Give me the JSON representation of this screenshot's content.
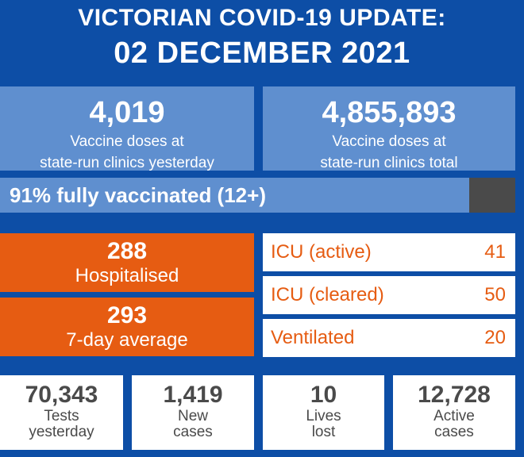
{
  "header": {
    "line1": "VICTORIAN COVID-19 UPDATE:",
    "line2": "02 DECEMBER 2021"
  },
  "vaccine": {
    "yesterday": {
      "value": "4,019",
      "label_line1": "Vaccine doses at",
      "label_line2": "state-run clinics yesterday"
    },
    "total": {
      "value": "4,855,893",
      "label_line1": "Vaccine doses at",
      "label_line2": "state-run clinics total"
    }
  },
  "fully_vaccinated": {
    "text": "91% fully vaccinated (12+)",
    "percent": 91
  },
  "hospital": {
    "hospitalised": {
      "value": "288",
      "label": "Hospitalised"
    },
    "average": {
      "value": "293",
      "label": "7-day average"
    }
  },
  "icu": [
    {
      "label": "ICU (active)",
      "value": "41"
    },
    {
      "label": "ICU (cleared)",
      "value": "50"
    },
    {
      "label": "Ventilated",
      "value": "20"
    }
  ],
  "stats": [
    {
      "value": "70,343",
      "label_line1": "Tests",
      "label_line2": "yesterday"
    },
    {
      "value": "1,419",
      "label_line1": "New",
      "label_line2": "cases"
    },
    {
      "value": "10",
      "label_line1": "Lives",
      "label_line2": "lost"
    },
    {
      "value": "12,728",
      "label_line1": "Active",
      "label_line2": "cases"
    }
  ],
  "colors": {
    "background": "#0d4ea6",
    "light_blue": "#5f8fcf",
    "orange": "#e65c12",
    "grey": "#4a4a4a"
  }
}
